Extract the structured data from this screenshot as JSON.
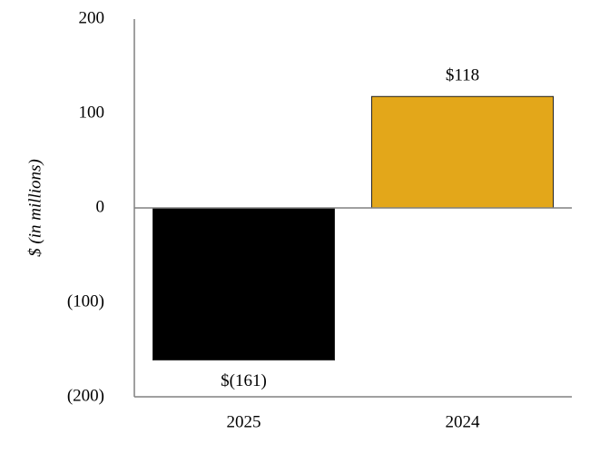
{
  "chart_data": {
    "type": "bar",
    "y_label": "$ (in millions)",
    "categories": [
      "2025",
      "2024"
    ],
    "values": [
      -161,
      118
    ],
    "value_labels": [
      "$(161)",
      "$118"
    ],
    "colors": [
      "#000000",
      "#e3a71a"
    ],
    "ylim": [
      -200,
      200
    ],
    "yticks": [
      {
        "value": -200,
        "label": "(200)"
      },
      {
        "value": -100,
        "label": "(100)"
      },
      0,
      100,
      200
    ],
    "grid": false
  }
}
